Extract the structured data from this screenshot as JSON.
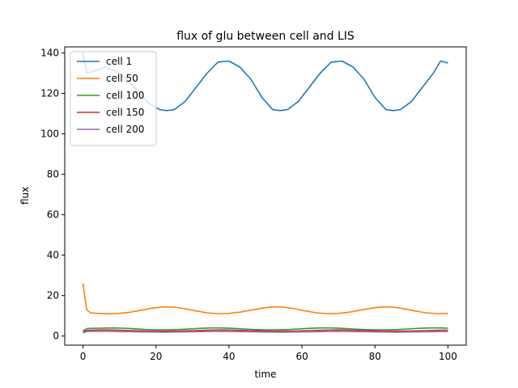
{
  "chart_data": {
    "type": "line",
    "title": "flux of glu between cell and LIS",
    "xlabel": "time",
    "ylabel": "flux",
    "xlim": [
      -5,
      105
    ],
    "ylim": [
      -4.5,
      143
    ],
    "xticks": [
      0,
      20,
      40,
      60,
      80,
      100
    ],
    "yticks": [
      0,
      20,
      40,
      60,
      80,
      100,
      120,
      140
    ],
    "grid": false,
    "legend": "top-left",
    "series": [
      {
        "name": "cell 1",
        "color": "#1f77b4",
        "x": [
          0,
          1,
          3,
          6,
          9,
          12,
          15,
          18,
          21,
          23,
          25,
          28,
          31,
          34,
          37,
          40,
          43,
          46,
          49,
          52,
          54,
          56,
          59,
          62,
          65,
          68,
          71,
          74,
          77,
          80,
          83,
          85,
          87,
          90,
          93,
          96,
          98,
          100
        ],
        "y": [
          140,
          130,
          131,
          133,
          131,
          127,
          121,
          115,
          112,
          111.5,
          112,
          116,
          123,
          130,
          135.5,
          136,
          133,
          127,
          118,
          112,
          111.5,
          112,
          116,
          123,
          130,
          135.5,
          136,
          133,
          127,
          118,
          112,
          111.5,
          112,
          116,
          123,
          130,
          136,
          135
        ]
      },
      {
        "name": "cell 50",
        "color": "#ff7f0e",
        "x": [
          0,
          1,
          2,
          4,
          7,
          10,
          13,
          16,
          19,
          22,
          25,
          28,
          31,
          34,
          37,
          40,
          43,
          46,
          49,
          52,
          55,
          58,
          61,
          64,
          67,
          70,
          73,
          76,
          79,
          82,
          85,
          88,
          91,
          94,
          97,
          100
        ],
        "y": [
          26,
          13,
          11.5,
          11.2,
          11,
          11.2,
          11.8,
          12.8,
          13.8,
          14.4,
          14.3,
          13.5,
          12.4,
          11.5,
          11.1,
          11.2,
          11.8,
          12.8,
          13.8,
          14.4,
          14.3,
          13.5,
          12.4,
          11.5,
          11.1,
          11.2,
          11.8,
          12.8,
          13.8,
          14.4,
          14.3,
          13.5,
          12.4,
          11.5,
          11.1,
          11.2
        ]
      },
      {
        "name": "cell 100",
        "color": "#2ca02c",
        "x": [
          0,
          1,
          2,
          5,
          8,
          11,
          14,
          17,
          20,
          23,
          26,
          29,
          32,
          35,
          38,
          41,
          44,
          47,
          50,
          53,
          56,
          59,
          62,
          65,
          68,
          71,
          74,
          77,
          80,
          83,
          86,
          89,
          92,
          95,
          98,
          100
        ],
        "y": [
          2.5,
          3.7,
          3.8,
          3.9,
          4,
          3.9,
          3.6,
          3.3,
          3.1,
          3.1,
          3.2,
          3.5,
          3.8,
          4,
          4,
          3.8,
          3.5,
          3.2,
          3.1,
          3.1,
          3.2,
          3.5,
          3.8,
          4,
          4,
          3.8,
          3.5,
          3.2,
          3.1,
          3.1,
          3.2,
          3.5,
          3.8,
          4,
          4,
          3.9
        ]
      },
      {
        "name": "cell 150",
        "color": "#d62728",
        "x": [
          0,
          1,
          2,
          6,
          10,
          14,
          18,
          22,
          26,
          30,
          34,
          38,
          42,
          46,
          50,
          54,
          58,
          62,
          66,
          70,
          74,
          78,
          82,
          86,
          90,
          94,
          98,
          100
        ],
        "y": [
          2.0,
          2.8,
          2.9,
          3.0,
          2.9,
          2.7,
          2.5,
          2.4,
          2.5,
          2.7,
          2.9,
          3.0,
          2.9,
          2.7,
          2.5,
          2.4,
          2.5,
          2.7,
          2.9,
          3.0,
          2.9,
          2.7,
          2.5,
          2.4,
          2.5,
          2.7,
          2.9,
          2.9
        ]
      },
      {
        "name": "cell 200",
        "color": "#9467bd",
        "x": [
          0,
          1,
          2,
          6,
          10,
          14,
          18,
          22,
          26,
          30,
          34,
          38,
          42,
          46,
          50,
          54,
          58,
          62,
          66,
          70,
          74,
          78,
          82,
          86,
          90,
          94,
          98,
          100
        ],
        "y": [
          1.6,
          2.2,
          2.3,
          2.3,
          2.2,
          2.1,
          2.0,
          1.9,
          2.0,
          2.1,
          2.2,
          2.3,
          2.2,
          2.1,
          2.0,
          1.9,
          2.0,
          2.1,
          2.2,
          2.3,
          2.2,
          2.1,
          2.0,
          1.9,
          2.0,
          2.1,
          2.2,
          2.2
        ]
      }
    ]
  }
}
